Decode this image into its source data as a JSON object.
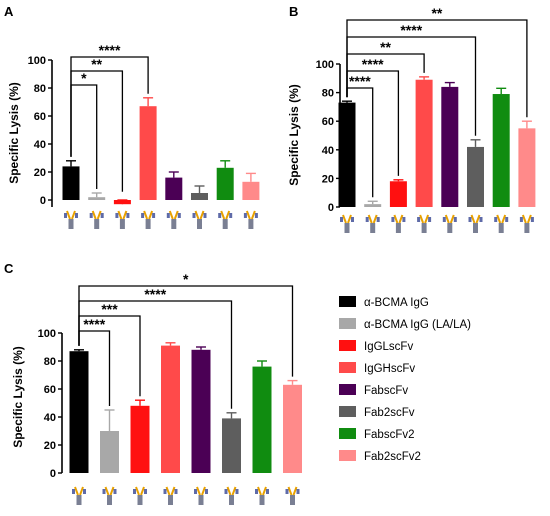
{
  "legend": [
    {
      "label": "α-BCMA IgG",
      "color": "#000000"
    },
    {
      "label": "α-BCMA IgG (LA/LA)",
      "color": "#a8a8a8"
    },
    {
      "label": "IgGLscFv",
      "color": "#ff1010"
    },
    {
      "label": "IgGHscFv",
      "color": "#ff4a4a"
    },
    {
      "label": "FabscFv",
      "color": "#4b0055"
    },
    {
      "label": "Fab2scFv",
      "color": "#5e5e5e"
    },
    {
      "label": "FabscFv2",
      "color": "#108c10"
    },
    {
      "label": "Fab2scFv2",
      "color": "#ff8a8a"
    }
  ],
  "chart_data": [
    {
      "panel": "A",
      "type": "bar",
      "ylabel": "Specific Lysis (%)",
      "ylim": [
        -5,
        100
      ],
      "yticks": [
        0,
        20,
        40,
        60,
        80,
        100
      ],
      "categories": [
        "α-BCMA IgG",
        "α-BCMA IgG (LA/LA)",
        "IgGLscFv",
        "IgGHscFv",
        "FabscFv",
        "Fab2scFv",
        "FabscFv2",
        "Fab2scFv2"
      ],
      "values": [
        24,
        2,
        -3,
        67,
        16,
        5,
        23,
        13
      ],
      "errors": [
        4,
        3,
        3,
        6,
        4,
        5,
        5,
        6
      ],
      "significance": [
        {
          "from": 0,
          "to": 1,
          "label": "*"
        },
        {
          "from": 0,
          "to": 2,
          "label": "**"
        },
        {
          "from": 0,
          "to": 3,
          "label": "****"
        }
      ]
    },
    {
      "panel": "B",
      "type": "bar",
      "ylabel": "Specific Lysis (%)",
      "ylim": [
        0,
        100
      ],
      "yticks": [
        0,
        20,
        40,
        60,
        80,
        100
      ],
      "categories": [
        "α-BCMA IgG",
        "α-BCMA IgG (LA/LA)",
        "IgGLscFv",
        "IgGHscFv",
        "FabscFv",
        "Fab2scFv",
        "FabscFv2",
        "Fab2scFv2"
      ],
      "values": [
        73,
        2,
        18,
        89,
        84,
        42,
        79,
        55
      ],
      "errors": [
        1,
        2,
        1,
        2,
        3,
        5,
        4,
        5
      ],
      "significance": [
        {
          "from": 0,
          "to": 1,
          "label": "****"
        },
        {
          "from": 0,
          "to": 2,
          "label": "****"
        },
        {
          "from": 0,
          "to": 3,
          "label": "**"
        },
        {
          "from": 0,
          "to": 5,
          "label": "****"
        },
        {
          "from": 0,
          "to": 7,
          "label": "**"
        }
      ]
    },
    {
      "panel": "C",
      "type": "bar",
      "ylabel": "Specific Lysis (%)",
      "ylim": [
        0,
        100
      ],
      "yticks": [
        0,
        20,
        40,
        60,
        80,
        100
      ],
      "categories": [
        "α-BCMA IgG",
        "α-BCMA IgG (LA/LA)",
        "IgGLscFv",
        "IgGHscFv",
        "FabscFv",
        "Fab2scFv",
        "FabscFv2",
        "Fab2scFv2"
      ],
      "values": [
        87,
        30,
        48,
        91,
        88,
        39,
        76,
        63
      ],
      "errors": [
        1,
        15,
        4,
        2,
        2,
        4,
        4,
        3
      ],
      "significance": [
        {
          "from": 0,
          "to": 1,
          "label": "****"
        },
        {
          "from": 0,
          "to": 2,
          "label": "***"
        },
        {
          "from": 0,
          "to": 5,
          "label": "****"
        },
        {
          "from": 0,
          "to": 7,
          "label": "*"
        }
      ]
    }
  ]
}
